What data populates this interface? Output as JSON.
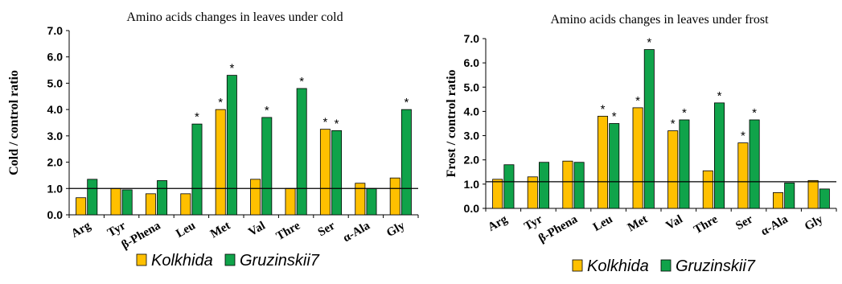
{
  "colors": {
    "kolkhida": "#FFC000",
    "gruzinskii": "#10A34A",
    "stroke": "#000000"
  },
  "chart_data": [
    {
      "type": "bar",
      "title": "Amino acids  changes  in leaves under cold",
      "ylabel": "Cold / control  ratio",
      "ylim": [
        0,
        7
      ],
      "yticks": [
        "0.0",
        "1.0",
        "2.0",
        "3.0",
        "4.0",
        "5.0",
        "6.0",
        "7.0"
      ],
      "reference_line": 1.0,
      "categories": [
        "Arg",
        "Tyr",
        "β-Phena",
        "Leu",
        "Met",
        "Val",
        "Thre",
        "Ser",
        "α-Ala",
        "Gly"
      ],
      "series": [
        {
          "name": "Kolkhida",
          "values": [
            0.65,
            1.0,
            0.8,
            0.8,
            4.0,
            1.35,
            1.0,
            3.25,
            1.2,
            1.4
          ]
        },
        {
          "name": "Gruzinskii7",
          "values": [
            1.35,
            0.95,
            1.3,
            3.45,
            5.3,
            3.7,
            4.8,
            3.2,
            1.0,
            4.0
          ]
        }
      ],
      "annotations": [
        {
          "text": "*",
          "series": 0,
          "category": 4
        },
        {
          "text": "*",
          "series": 0,
          "category": 7
        },
        {
          "text": "*",
          "series": 1,
          "category": 3
        },
        {
          "text": "*",
          "series": 1,
          "category": 4
        },
        {
          "text": "*",
          "series": 1,
          "category": 5
        },
        {
          "text": "*",
          "series": 1,
          "category": 6
        },
        {
          "text": "*",
          "series": 1,
          "category": 7
        },
        {
          "text": "*",
          "series": 1,
          "category": 9
        }
      ],
      "legend": [
        "Kolkhida",
        "Gruzinskii7"
      ]
    },
    {
      "type": "bar",
      "title": "Amino acids  changes  in leaves under frost",
      "ylabel": "Frost / control ratio",
      "ylim": [
        0,
        7
      ],
      "yticks": [
        "0.0",
        "1.0",
        "2.0",
        "3.0",
        "4.0",
        "5.0",
        "6.0",
        "7.0"
      ],
      "reference_line": 1.1,
      "categories": [
        "Arg",
        "Tyr",
        "β-Phena",
        "Leu",
        "Met",
        "Val",
        "Thre",
        "Ser",
        "α-Ala",
        "Gly"
      ],
      "series": [
        {
          "name": "Kolkhida",
          "values": [
            1.2,
            1.3,
            1.95,
            3.8,
            4.15,
            3.2,
            1.55,
            2.7,
            0.65,
            1.15
          ]
        },
        {
          "name": "Gruzinskii7",
          "values": [
            1.8,
            1.9,
            1.9,
            3.5,
            6.55,
            3.65,
            4.35,
            3.65,
            1.05,
            0.8
          ]
        }
      ],
      "annotations": [
        {
          "text": "*",
          "series": 0,
          "category": 3
        },
        {
          "text": "*",
          "series": 0,
          "category": 4
        },
        {
          "text": "*",
          "series": 0,
          "category": 5
        },
        {
          "text": "*",
          "series": 0,
          "category": 7
        },
        {
          "text": "*",
          "series": 1,
          "category": 3
        },
        {
          "text": "*",
          "series": 1,
          "category": 4
        },
        {
          "text": "*",
          "series": 1,
          "category": 5
        },
        {
          "text": "*",
          "series": 1,
          "category": 6
        },
        {
          "text": "*",
          "series": 1,
          "category": 7
        }
      ],
      "legend": [
        "Kolkhida",
        "Gruzinskii7"
      ]
    }
  ]
}
